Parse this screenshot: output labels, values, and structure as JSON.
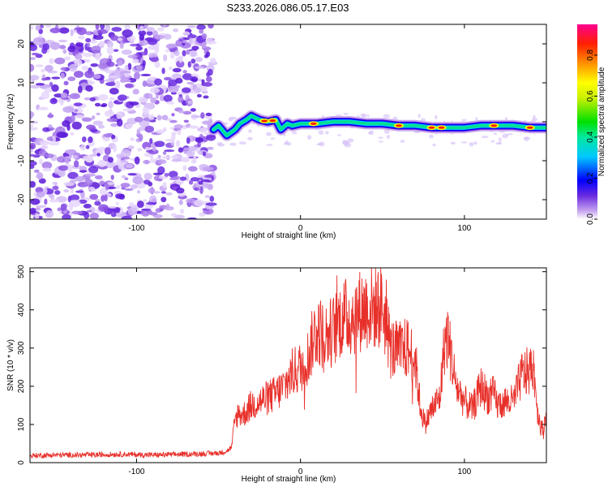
{
  "chart_data": [
    {
      "type": "heatmap",
      "title": "S233.2026.086.05.17.E03",
      "xlabel": "Height of straight line (km)",
      "ylabel": "Frequency (Hz)",
      "xlim": [
        -165,
        150
      ],
      "ylim": [
        -25,
        25
      ],
      "xticks": [
        -100,
        0,
        100
      ],
      "xtick_labels": [
        "-100",
        "0",
        "100"
      ],
      "yticks": [
        -20,
        -10,
        0,
        10,
        20
      ],
      "ytick_labels": [
        "-20",
        "-10",
        "0",
        "10",
        "20"
      ],
      "noise_region_x": [
        -165,
        -53
      ],
      "signal_line": {
        "x": [
          -53,
          -50,
          -45,
          -40,
          -37,
          -33,
          -30,
          -25,
          -20,
          -15,
          -12,
          -8,
          -5,
          0,
          10,
          20,
          30,
          40,
          50,
          60,
          70,
          80,
          90,
          100,
          110,
          120,
          130,
          140,
          150
        ],
        "y": [
          -2,
          -1,
          -3.5,
          -2,
          -0.5,
          0.5,
          1.5,
          0.5,
          0,
          0.5,
          -2,
          -0.5,
          -1,
          -0.5,
          -0.5,
          0,
          0,
          -0.5,
          -0.5,
          -1,
          -1,
          -1.5,
          -1.5,
          -1.5,
          -1,
          -1,
          -1,
          -1.5,
          -1.5
        ]
      },
      "colorbar": {
        "label": "Normalized spectral amplitude",
        "range": [
          0.0,
          0.95
        ],
        "ticks": [
          0.0,
          0.2,
          0.4,
          0.6,
          0.8
        ],
        "tick_labels": [
          "0.0",
          "0.2",
          "0.4",
          "0.6",
          "0.8"
        ]
      }
    },
    {
      "type": "line",
      "title": "",
      "xlabel": "Height of straight line (km)",
      "ylabel": "SNR (10 * v/v)",
      "xlim": [
        -165,
        150
      ],
      "ylim": [
        0,
        510
      ],
      "xticks": [
        -100,
        0,
        100
      ],
      "xtick_labels": [
        "-100",
        "0",
        "100"
      ],
      "yticks": [
        0,
        100,
        200,
        300,
        400,
        500
      ],
      "ytick_labels": [
        "0",
        "100",
        "200",
        "300",
        "400",
        "500"
      ],
      "series": [
        {
          "name": "SNR",
          "color": "#e8302a",
          "x": [
            -165,
            -150,
            -130,
            -110,
            -90,
            -70,
            -50,
            -45,
            -42,
            -40,
            -38,
            -35,
            -30,
            -25,
            -20,
            -15,
            -10,
            -5,
            0,
            5,
            8,
            10,
            15,
            20,
            25,
            30,
            35,
            40,
            45,
            50,
            55,
            60,
            65,
            70,
            73,
            76,
            80,
            85,
            88,
            90,
            95,
            100,
            105,
            110,
            115,
            118,
            120,
            125,
            130,
            135,
            140,
            142,
            145,
            148,
            150
          ],
          "y": [
            18,
            20,
            20,
            22,
            20,
            22,
            25,
            30,
            40,
            110,
            130,
            125,
            150,
            160,
            170,
            180,
            200,
            235,
            250,
            280,
            330,
            350,
            330,
            345,
            380,
            380,
            395,
            405,
            405,
            410,
            300,
            290,
            300,
            270,
            150,
            100,
            140,
            170,
            320,
            330,
            200,
            160,
            140,
            200,
            170,
            180,
            150,
            160,
            160,
            230,
            240,
            260,
            120,
            80,
            140
          ]
        }
      ]
    }
  ]
}
